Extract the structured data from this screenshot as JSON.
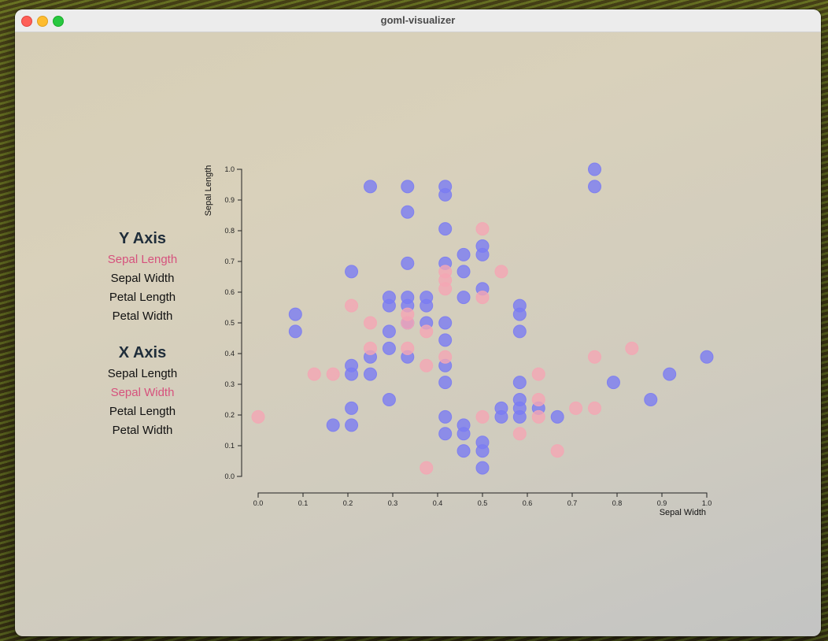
{
  "window": {
    "title": "goml-visualizer"
  },
  "y_panel": {
    "heading": "Y Axis",
    "options": [
      "Sepal Length",
      "Sepal Width",
      "Petal Length",
      "Petal Width"
    ],
    "selected_index": 0
  },
  "x_panel": {
    "heading": "X Axis",
    "options": [
      "Sepal Length",
      "Sepal Width",
      "Petal Length",
      "Petal Width"
    ],
    "selected_index": 1
  },
  "colors": {
    "selected_option": "#d6527d",
    "cluster_blue": "#7b7cf2",
    "cluster_pink": "#f4a6b4"
  },
  "chart_data": {
    "type": "scatter",
    "xlabel": "Sepal Width",
    "ylabel": "Sepal Length",
    "xlim": [
      0,
      1
    ],
    "ylim": [
      0,
      1
    ],
    "xticks": [
      "0.0",
      "0.1",
      "0.2",
      "0.3",
      "0.4",
      "0.5",
      "0.6",
      "0.7",
      "0.8",
      "0.9",
      "1.0"
    ],
    "yticks": [
      "0.0",
      "0.1",
      "0.2",
      "0.3",
      "0.4",
      "0.5",
      "0.6",
      "0.7",
      "0.8",
      "0.9",
      "1.0"
    ],
    "series": [
      {
        "color": "#7b7cf2",
        "points": [
          [
            0.083,
            0.528
          ],
          [
            0.083,
            0.472
          ],
          [
            0.208,
            0.667
          ],
          [
            0.25,
            0.944
          ],
          [
            0.333,
            0.944
          ],
          [
            0.333,
            0.861
          ],
          [
            0.417,
            0.944
          ],
          [
            0.417,
            0.917
          ],
          [
            0.417,
            0.806
          ],
          [
            0.75,
            1.0
          ],
          [
            0.75,
            0.944
          ],
          [
            0.208,
            0.361
          ],
          [
            0.208,
            0.333
          ],
          [
            0.25,
            0.333
          ],
          [
            0.25,
            0.389
          ],
          [
            0.292,
            0.583
          ],
          [
            0.292,
            0.556
          ],
          [
            0.292,
            0.472
          ],
          [
            0.292,
            0.417
          ],
          [
            0.333,
            0.694
          ],
          [
            0.333,
            0.583
          ],
          [
            0.333,
            0.556
          ],
          [
            0.333,
            0.5
          ],
          [
            0.333,
            0.389
          ],
          [
            0.375,
            0.583
          ],
          [
            0.375,
            0.556
          ],
          [
            0.375,
            0.5
          ],
          [
            0.417,
            0.694
          ],
          [
            0.417,
            0.5
          ],
          [
            0.417,
            0.444
          ],
          [
            0.417,
            0.361
          ],
          [
            0.417,
            0.306
          ],
          [
            0.458,
            0.722
          ],
          [
            0.458,
            0.667
          ],
          [
            0.458,
            0.583
          ],
          [
            0.5,
            0.75
          ],
          [
            0.5,
            0.722
          ],
          [
            0.5,
            0.611
          ],
          [
            0.583,
            0.556
          ],
          [
            0.583,
            0.528
          ],
          [
            0.583,
            0.472
          ],
          [
            0.167,
            0.167
          ],
          [
            0.208,
            0.222
          ],
          [
            0.208,
            0.167
          ],
          [
            0.292,
            0.25
          ],
          [
            0.417,
            0.194
          ],
          [
            0.417,
            0.139
          ],
          [
            0.458,
            0.167
          ],
          [
            0.458,
            0.139
          ],
          [
            0.458,
            0.083
          ],
          [
            0.5,
            0.111
          ],
          [
            0.5,
            0.083
          ],
          [
            0.5,
            0.028
          ],
          [
            0.542,
            0.222
          ],
          [
            0.542,
            0.194
          ],
          [
            0.583,
            0.306
          ],
          [
            0.583,
            0.25
          ],
          [
            0.583,
            0.222
          ],
          [
            0.583,
            0.194
          ],
          [
            0.625,
            0.222
          ],
          [
            0.667,
            0.194
          ],
          [
            0.792,
            0.306
          ],
          [
            0.875,
            0.25
          ],
          [
            0.917,
            0.333
          ],
          [
            1.0,
            0.389
          ]
        ]
      },
      {
        "color": "#f4a6b4",
        "points": [
          [
            0.0,
            0.194
          ],
          [
            0.125,
            0.333
          ],
          [
            0.167,
            0.333
          ],
          [
            0.208,
            0.556
          ],
          [
            0.25,
            0.5
          ],
          [
            0.25,
            0.417
          ],
          [
            0.333,
            0.528
          ],
          [
            0.333,
            0.5
          ],
          [
            0.333,
            0.417
          ],
          [
            0.375,
            0.472
          ],
          [
            0.375,
            0.361
          ],
          [
            0.375,
            0.028
          ],
          [
            0.417,
            0.667
          ],
          [
            0.417,
            0.639
          ],
          [
            0.417,
            0.611
          ],
          [
            0.417,
            0.389
          ],
          [
            0.5,
            0.806
          ],
          [
            0.5,
            0.583
          ],
          [
            0.5,
            0.194
          ],
          [
            0.542,
            0.667
          ],
          [
            0.583,
            0.139
          ],
          [
            0.625,
            0.333
          ],
          [
            0.625,
            0.25
          ],
          [
            0.625,
            0.194
          ],
          [
            0.667,
            0.083
          ],
          [
            0.708,
            0.222
          ],
          [
            0.75,
            0.222
          ],
          [
            0.75,
            0.389
          ],
          [
            0.833,
            0.417
          ]
        ]
      }
    ]
  }
}
